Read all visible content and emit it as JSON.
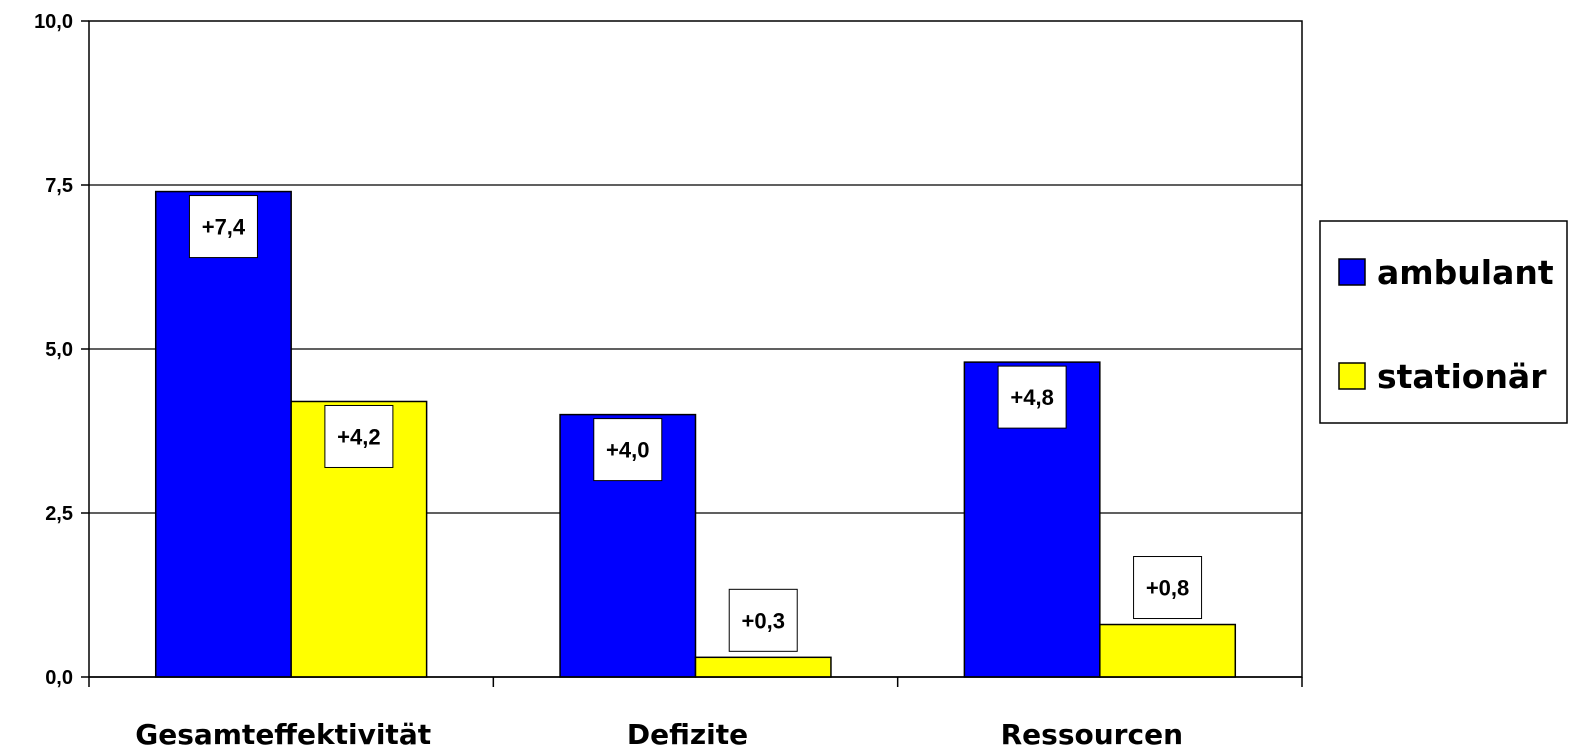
{
  "chart_data": {
    "type": "bar",
    "categories": [
      "Gesamteffektivität",
      "Defizite",
      "Ressourcen"
    ],
    "series": [
      {
        "name": "ambulant",
        "values": [
          7.4,
          4.0,
          4.8
        ],
        "labels": [
          "+7,4",
          "+4,0",
          "+4,8"
        ],
        "color": "#0000ff"
      },
      {
        "name": "stationär",
        "values": [
          4.2,
          0.3,
          0.8
        ],
        "labels": [
          "+4,2",
          "+0,3",
          "+0,8"
        ],
        "color": "#ffff00"
      }
    ],
    "ylim": [
      0,
      10
    ],
    "yticks": [
      0,
      2.5,
      5,
      7.5,
      10
    ],
    "ytick_labels": [
      "0,0",
      "2,5",
      "5,0",
      "7,5",
      "10,0"
    ],
    "grid": true,
    "legend": "right",
    "title": "",
    "xlabel": "",
    "ylabel": ""
  }
}
